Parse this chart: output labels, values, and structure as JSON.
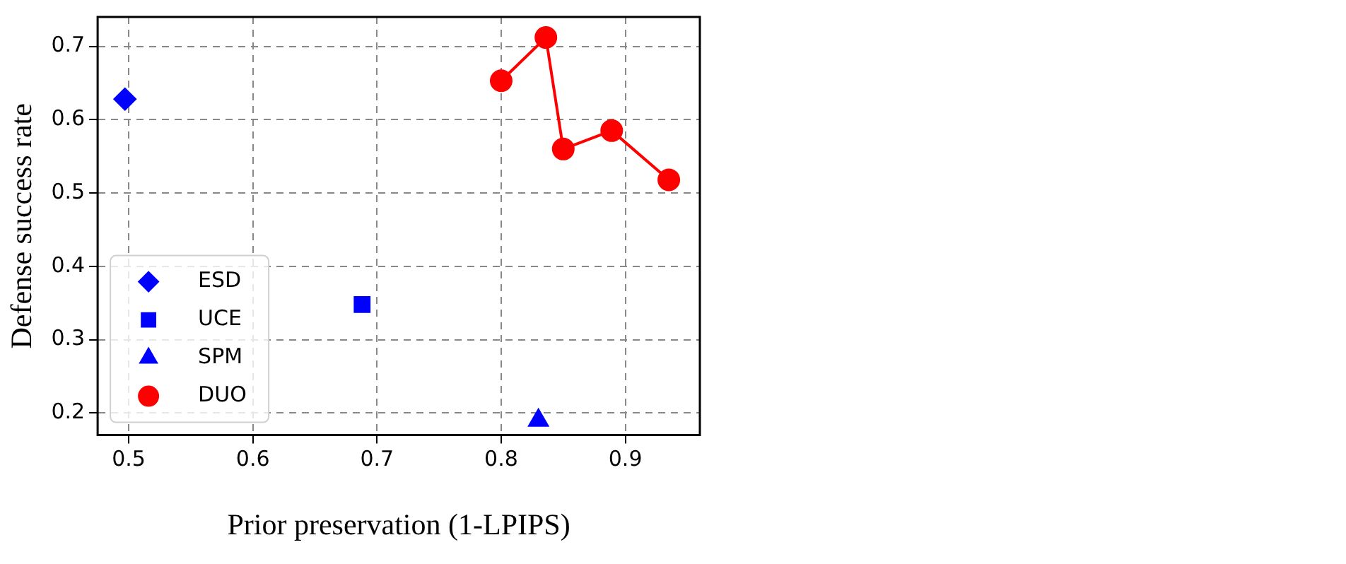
{
  "chart_data": {
    "type": "scatter",
    "xlabel": "Prior preservation (1-LPIPS)",
    "ylabel": "Defense success rate",
    "xlim": [
      0.475,
      0.96
    ],
    "ylim": [
      0.17,
      0.74
    ],
    "xticks": [
      0.5,
      0.6,
      0.7,
      0.8,
      0.9
    ],
    "yticks": [
      0.2,
      0.3,
      0.4,
      0.5,
      0.6,
      0.7
    ],
    "grid": true,
    "legend": "bottom left",
    "series": [
      {
        "name": "ESD",
        "type": "scatter",
        "marker": "diamond",
        "color": "#0000ff",
        "x": [
          0.497
        ],
        "values": [
          0.628
        ]
      },
      {
        "name": "UCE",
        "type": "scatter",
        "marker": "square",
        "color": "#0000ff",
        "x": [
          0.688
        ],
        "values": [
          0.348
        ]
      },
      {
        "name": "SPM",
        "type": "scatter",
        "marker": "triangle",
        "color": "#0000ff",
        "x": [
          0.83
        ],
        "values": [
          0.19
        ]
      },
      {
        "name": "DUO",
        "type": "line",
        "marker": "circle",
        "line_style": "solid",
        "color": "#ff0000",
        "x": [
          0.8,
          0.836,
          0.85,
          0.889,
          0.935
        ],
        "values": [
          0.653,
          0.712,
          0.56,
          0.585,
          0.518
        ]
      }
    ]
  }
}
